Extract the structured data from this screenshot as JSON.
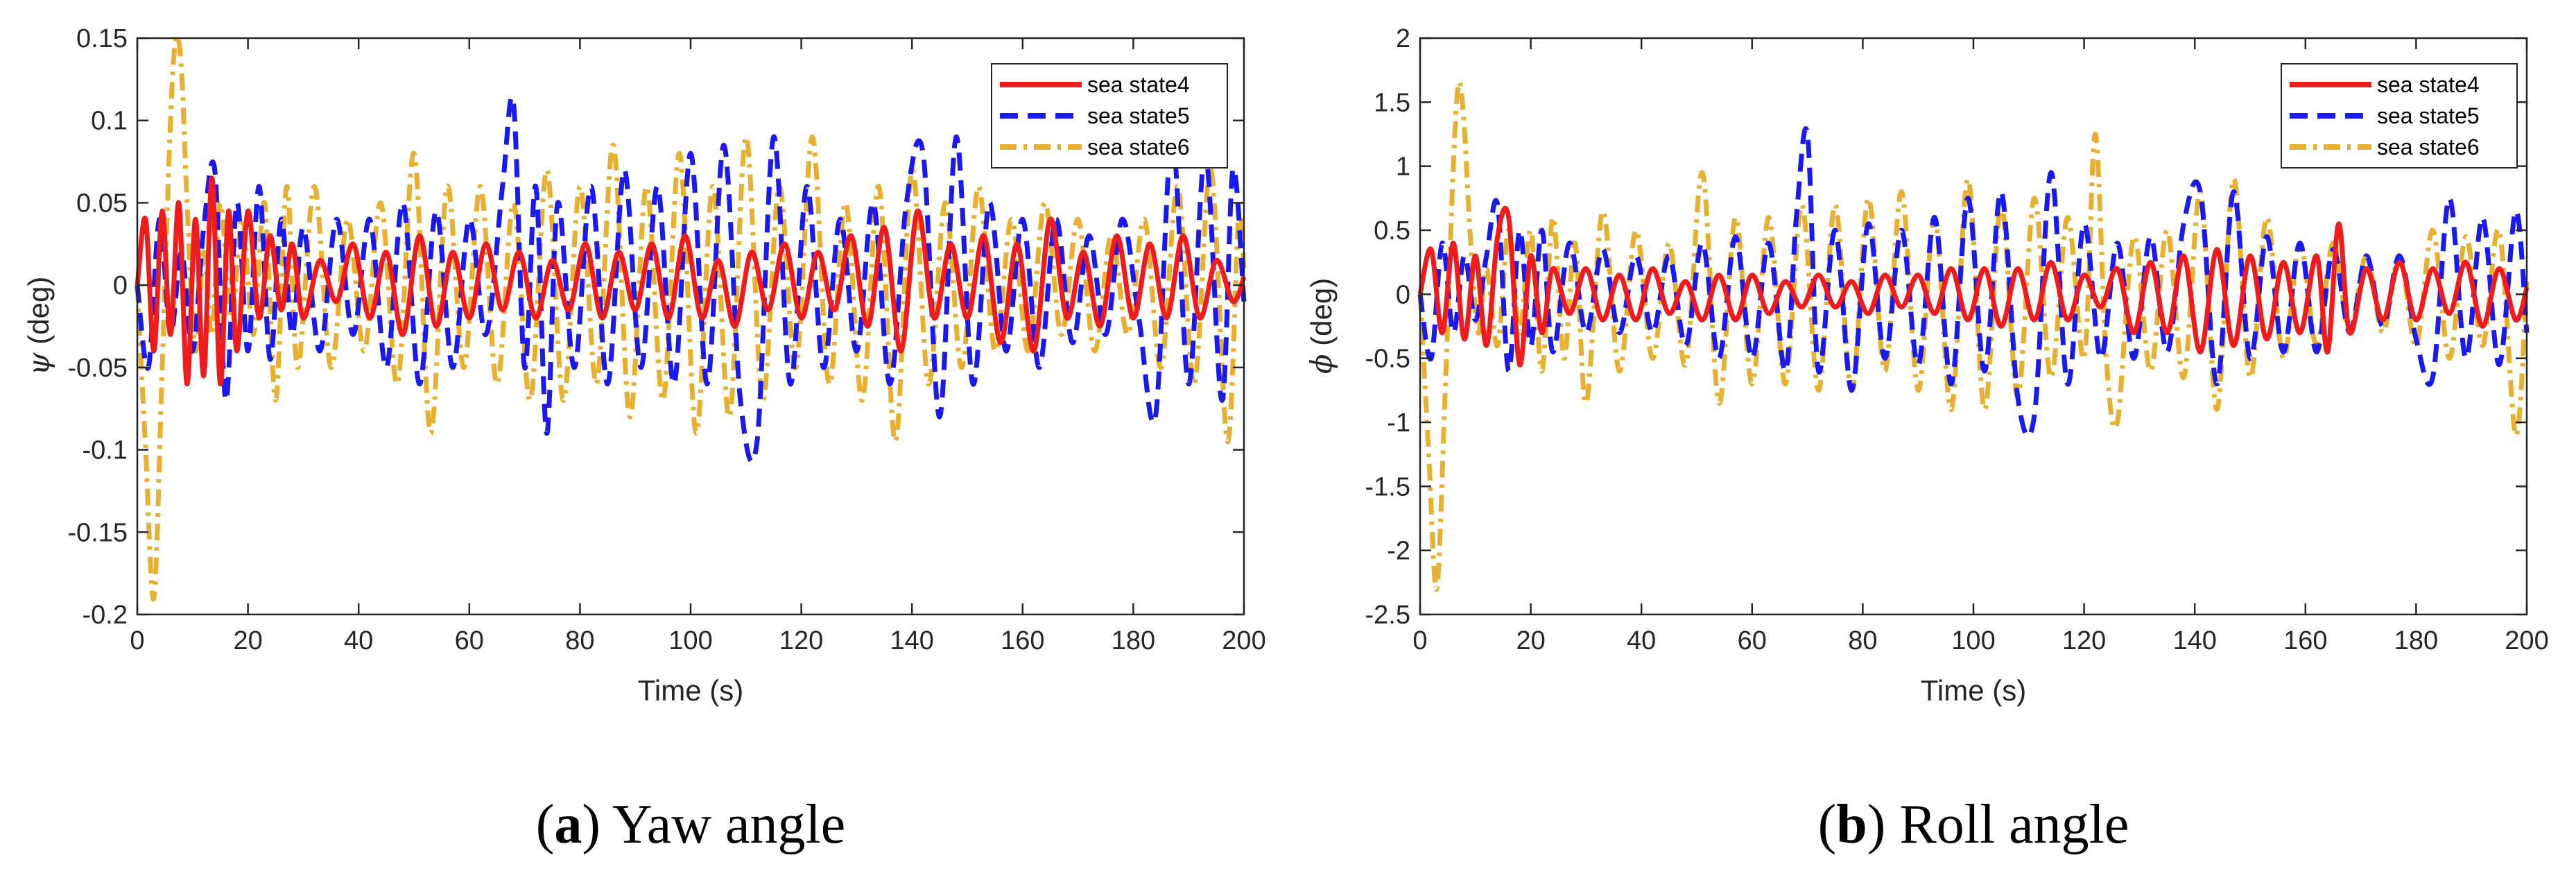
{
  "panels": [
    {
      "id": "a",
      "caption": {
        "letter": "a",
        "text": " Yaw angle"
      },
      "ylabel_symbol": "ψ",
      "ylabel_unit": " (deg)"
    },
    {
      "id": "b",
      "caption": {
        "letter": "b",
        "text": " Roll angle"
      },
      "ylabel_symbol": "ϕ",
      "ylabel_unit": " (deg)"
    }
  ],
  "colors": {
    "sea state4": "#ee1c1c",
    "sea state5": "#1a1aee",
    "sea state6": "#e8b031"
  },
  "chart_data": [
    {
      "type": "line",
      "title": "",
      "xlabel": "Time (s)",
      "ylabel": "ψ (deg)",
      "xlim": [
        0,
        200
      ],
      "ylim": [
        -0.2,
        0.15
      ],
      "xticks": [
        0,
        20,
        40,
        60,
        80,
        100,
        120,
        140,
        160,
        180,
        200
      ],
      "xtick_labels": [
        "0",
        "20",
        "40",
        "60",
        "80",
        "100",
        "120",
        "140",
        "160",
        "180",
        "200"
      ],
      "yticks": [
        -0.2,
        -0.15,
        -0.1,
        -0.05,
        0,
        0.05,
        0.1,
        0.15
      ],
      "ytick_labels": [
        "-0.2",
        "-0.15",
        "-0.1",
        "-0.05",
        "0",
        "0.05",
        "0.1",
        "0.15"
      ],
      "legend_position": "top-right",
      "grid": false,
      "series": [
        {
          "name": "sea state4",
          "style": "solid",
          "x": [
            0,
            1.5,
            3,
            4.5,
            6,
            7.5,
            9,
            10.5,
            12,
            13.5,
            15,
            16.5,
            18,
            20,
            22,
            24,
            26,
            28,
            30,
            33,
            36,
            39,
            42,
            45,
            48,
            51,
            54,
            57,
            60,
            63,
            66,
            69,
            72,
            75,
            78,
            81,
            84,
            87,
            90,
            93,
            96,
            99,
            102,
            105,
            108,
            111,
            114,
            117,
            120,
            123,
            126,
            129,
            132,
            135,
            138,
            141,
            144,
            147,
            150,
            153,
            156,
            159,
            162,
            165,
            168,
            171,
            174,
            177,
            180,
            183,
            186,
            189,
            192,
            195,
            198,
            200
          ],
          "y": [
            0,
            0.04,
            -0.04,
            0.045,
            -0.03,
            0.05,
            -0.06,
            0.04,
            -0.055,
            0.065,
            -0.06,
            0.045,
            -0.04,
            0.045,
            -0.02,
            0.03,
            -0.015,
            0.025,
            -0.02,
            0.015,
            -0.01,
            0.025,
            -0.02,
            0.02,
            -0.03,
            0.03,
            -0.025,
            0.02,
            -0.02,
            0.025,
            -0.015,
            0.02,
            -0.02,
            0.015,
            -0.015,
            0.025,
            -0.02,
            0.02,
            -0.015,
            0.025,
            -0.02,
            0.03,
            -0.02,
            0.015,
            -0.025,
            0.02,
            -0.015,
            0.025,
            -0.02,
            0.02,
            -0.015,
            0.03,
            -0.025,
            0.035,
            -0.04,
            0.045,
            -0.02,
            0.025,
            -0.02,
            0.03,
            -0.035,
            0.025,
            -0.04,
            0.04,
            -0.02,
            0.02,
            -0.025,
            0.03,
            -0.02,
            0.025,
            -0.02,
            0.03,
            -0.02,
            0.015,
            -0.01,
            0.005
          ]
        },
        {
          "name": "sea state5",
          "style": "dashed",
          "x": [
            0,
            2,
            4,
            6,
            8,
            10,
            12,
            14,
            16,
            18,
            20,
            22,
            24,
            26,
            28,
            30,
            33,
            36,
            39,
            42,
            45,
            48,
            51,
            54,
            57,
            60,
            63,
            66,
            68,
            70,
            72,
            74,
            76,
            79,
            82,
            85,
            88,
            91,
            94,
            97,
            100,
            103,
            106,
            109,
            112,
            115,
            118,
            121,
            124,
            127,
            130,
            133,
            136,
            139,
            142,
            145,
            148,
            151,
            154,
            157,
            160,
            163,
            166,
            169,
            172,
            175,
            178,
            181,
            184,
            187,
            190,
            193,
            196,
            198,
            200
          ],
          "y": [
            0,
            -0.05,
            0.04,
            -0.03,
            0.02,
            -0.04,
            0.035,
            0.07,
            -0.07,
            0.05,
            -0.04,
            0.06,
            -0.045,
            0.04,
            -0.03,
            0.035,
            -0.04,
            0.04,
            -0.03,
            0.04,
            -0.05,
            0.05,
            -0.06,
            0.045,
            -0.05,
            0.04,
            -0.03,
            0.06,
            0.11,
            -0.05,
            0.06,
            -0.09,
            0.05,
            -0.05,
            0.06,
            -0.06,
            0.07,
            -0.05,
            0.06,
            -0.06,
            0.08,
            -0.06,
            0.085,
            -0.07,
            -0.095,
            0.09,
            -0.06,
            0.06,
            -0.05,
            0.04,
            -0.04,
            0.05,
            -0.06,
            0.05,
            0.08,
            -0.08,
            0.09,
            -0.06,
            0.05,
            -0.04,
            0.04,
            -0.05,
            0.04,
            -0.035,
            0.03,
            -0.03,
            0.04,
            -0.02,
            -0.08,
            0.09,
            -0.06,
            0.08,
            -0.07,
            0.07,
            -0.01
          ]
        },
        {
          "name": "sea state6",
          "style": "dashdot",
          "x": [
            0,
            1.5,
            3,
            4.5,
            6,
            7,
            8,
            9,
            10.5,
            12,
            13.5,
            15,
            17,
            19,
            21,
            23,
            25,
            27,
            29,
            32,
            35,
            38,
            41,
            44,
            47,
            50,
            53,
            56,
            59,
            62,
            65,
            68,
            71,
            74,
            77,
            80,
            83,
            86,
            89,
            92,
            95,
            98,
            101,
            104,
            107,
            110,
            113,
            116,
            119,
            122,
            125,
            128,
            131,
            134,
            137,
            140,
            143,
            146,
            149,
            152,
            155,
            158,
            161,
            164,
            167,
            170,
            173,
            176,
            179,
            182,
            185,
            188,
            191,
            194,
            197,
            199,
            200
          ],
          "y": [
            0,
            -0.1,
            -0.19,
            -0.05,
            0.1,
            0.15,
            0.13,
            0.05,
            -0.04,
            0.02,
            -0.03,
            0.05,
            -0.02,
            0.04,
            -0.03,
            0.05,
            -0.07,
            0.06,
            -0.05,
            0.06,
            -0.05,
            0.04,
            -0.04,
            0.05,
            -0.06,
            0.08,
            -0.09,
            0.06,
            -0.05,
            0.06,
            -0.06,
            0.05,
            -0.07,
            0.07,
            -0.07,
            0.06,
            -0.06,
            0.085,
            -0.08,
            0.06,
            -0.07,
            0.08,
            -0.09,
            0.06,
            -0.08,
            0.09,
            -0.07,
            0.06,
            -0.05,
            0.09,
            -0.06,
            0.05,
            -0.07,
            0.06,
            -0.095,
            0.07,
            -0.06,
            0.05,
            -0.05,
            0.06,
            -0.04,
            0.04,
            -0.04,
            0.05,
            -0.03,
            0.04,
            -0.04,
            0.03,
            -0.03,
            0.04,
            -0.05,
            0.06,
            -0.06,
            0.07,
            -0.095,
            0.04,
            0.01
          ]
        }
      ]
    },
    {
      "type": "line",
      "title": "",
      "xlabel": "Time (s)",
      "ylabel": "ϕ (deg)",
      "xlim": [
        0,
        200
      ],
      "ylim": [
        -2.5,
        2
      ],
      "xticks": [
        0,
        20,
        40,
        60,
        80,
        100,
        120,
        140,
        160,
        180,
        200
      ],
      "xtick_labels": [
        "0",
        "20",
        "40",
        "60",
        "80",
        "100",
        "120",
        "140",
        "160",
        "180",
        "200"
      ],
      "yticks": [
        -2.5,
        -2,
        -1.5,
        -1,
        -0.5,
        0,
        0.5,
        1,
        1.5,
        2
      ],
      "ytick_labels": [
        "-2.5",
        "-2",
        "-1.5",
        "-1",
        "-0.5",
        "0",
        "0.5",
        "1",
        "1.5",
        "2"
      ],
      "legend_position": "top-right",
      "grid": false,
      "series": [
        {
          "name": "sea state4",
          "style": "solid",
          "x": [
            0,
            2,
            4,
            6,
            8,
            10,
            12,
            14,
            16,
            18,
            20,
            22,
            24,
            27,
            30,
            33,
            36,
            39,
            42,
            45,
            48,
            51,
            54,
            57,
            60,
            63,
            66,
            69,
            72,
            75,
            78,
            81,
            84,
            87,
            90,
            93,
            96,
            99,
            102,
            105,
            108,
            111,
            114,
            117,
            120,
            123,
            126,
            129,
            132,
            135,
            138,
            141,
            144,
            147,
            150,
            153,
            156,
            159,
            162,
            164,
            166,
            168,
            171,
            174,
            177,
            180,
            183,
            186,
            189,
            192,
            195,
            198,
            200
          ],
          "y": [
            0,
            0.35,
            -0.3,
            0.4,
            -0.35,
            0.3,
            -0.4,
            0.45,
            0.6,
            -0.55,
            0.3,
            -0.3,
            0.2,
            -0.15,
            0.2,
            -0.2,
            0.15,
            -0.2,
            0.2,
            -0.15,
            0.1,
            -0.2,
            0.15,
            -0.2,
            0.15,
            -0.15,
            0.1,
            -0.1,
            0.15,
            -0.1,
            0.1,
            -0.15,
            0.15,
            -0.1,
            0.15,
            -0.15,
            0.2,
            -0.2,
            0.2,
            -0.25,
            0.2,
            -0.2,
            0.25,
            -0.2,
            0.15,
            -0.1,
            0.2,
            -0.3,
            0.25,
            -0.3,
            0.3,
            -0.45,
            0.35,
            -0.4,
            0.3,
            -0.35,
            0.25,
            -0.3,
            0.3,
            -0.45,
            0.55,
            -0.3,
            0.2,
            -0.2,
            0.25,
            -0.2,
            0.2,
            -0.15,
            0.25,
            -0.25,
            0.2,
            -0.2,
            0.05
          ]
        },
        {
          "name": "sea state5",
          "style": "dashed",
          "x": [
            0,
            2,
            4,
            6,
            8,
            10,
            12,
            14,
            16,
            18,
            20,
            22,
            24,
            27,
            30,
            33,
            36,
            39,
            42,
            45,
            48,
            51,
            54,
            57,
            60,
            63,
            66,
            68,
            70,
            72,
            75,
            78,
            81,
            84,
            87,
            90,
            93,
            96,
            99,
            102,
            105,
            108,
            111,
            114,
            117,
            120,
            123,
            126,
            129,
            132,
            135,
            138,
            141,
            144,
            147,
            150,
            153,
            156,
            159,
            162,
            165,
            168,
            171,
            174,
            177,
            180,
            183,
            186,
            189,
            192,
            195,
            198,
            200
          ],
          "y": [
            0,
            -0.5,
            0.4,
            -0.3,
            0.3,
            -0.2,
            0.3,
            0.7,
            -0.6,
            0.5,
            -0.4,
            0.5,
            -0.45,
            0.4,
            -0.3,
            0.35,
            -0.3,
            0.3,
            -0.3,
            0.3,
            -0.4,
            0.4,
            -0.5,
            0.45,
            -0.5,
            0.4,
            -0.6,
            0.6,
            1.25,
            -0.6,
            0.5,
            -0.75,
            0.55,
            -0.5,
            0.5,
            -0.55,
            0.6,
            -0.7,
            0.75,
            -0.6,
            0.8,
            -0.8,
            -0.95,
            0.95,
            -0.7,
            0.55,
            -0.5,
            0.4,
            -0.5,
            0.45,
            -0.45,
            0.55,
            0.8,
            -0.7,
            0.8,
            -0.5,
            0.45,
            -0.45,
            0.4,
            -0.45,
            0.35,
            -0.3,
            0.3,
            -0.25,
            0.3,
            -0.35,
            -0.65,
            0.75,
            -0.5,
            0.6,
            -0.55,
            0.65,
            -0.3
          ]
        },
        {
          "name": "sea state6",
          "style": "dashdot",
          "x": [
            0,
            1.5,
            3,
            4.5,
            6,
            7,
            8,
            9,
            10.5,
            12,
            14,
            16,
            18,
            20,
            22,
            24,
            26,
            28,
            30,
            33,
            36,
            39,
            42,
            45,
            48,
            51,
            54,
            57,
            60,
            63,
            66,
            69,
            72,
            75,
            78,
            81,
            84,
            87,
            90,
            93,
            96,
            99,
            102,
            105,
            108,
            111,
            114,
            117,
            120,
            122,
            124,
            126,
            129,
            132,
            135,
            138,
            141,
            144,
            147,
            150,
            153,
            156,
            159,
            162,
            165,
            168,
            171,
            174,
            177,
            180,
            183,
            186,
            189,
            192,
            195,
            198,
            200
          ],
          "y": [
            0,
            -1.2,
            -2.3,
            -0.8,
            1.0,
            1.65,
            1.3,
            0.5,
            -0.3,
            0.2,
            -0.4,
            0.5,
            -0.3,
            0.5,
            -0.6,
            0.6,
            -0.5,
            0.4,
            -0.85,
            0.65,
            -0.6,
            0.5,
            -0.5,
            0.4,
            -0.55,
            0.95,
            -0.85,
            0.6,
            -0.7,
            0.6,
            -0.7,
            0.7,
            -0.75,
            0.7,
            -0.75,
            0.75,
            -0.6,
            0.8,
            -0.75,
            0.6,
            -0.9,
            0.9,
            -0.9,
            0.7,
            -0.8,
            0.75,
            -0.65,
            0.6,
            -0.5,
            1.25,
            -0.5,
            -1.0,
            0.45,
            -0.6,
            0.5,
            -0.65,
            0.8,
            -0.9,
            0.9,
            -0.65,
            0.6,
            -0.5,
            0.4,
            -0.4,
            0.4,
            -0.3,
            0.3,
            -0.3,
            0.3,
            -0.4,
            0.5,
            -0.5,
            0.45,
            -0.4,
            0.5,
            -1.1,
            0.1
          ]
        }
      ]
    }
  ]
}
